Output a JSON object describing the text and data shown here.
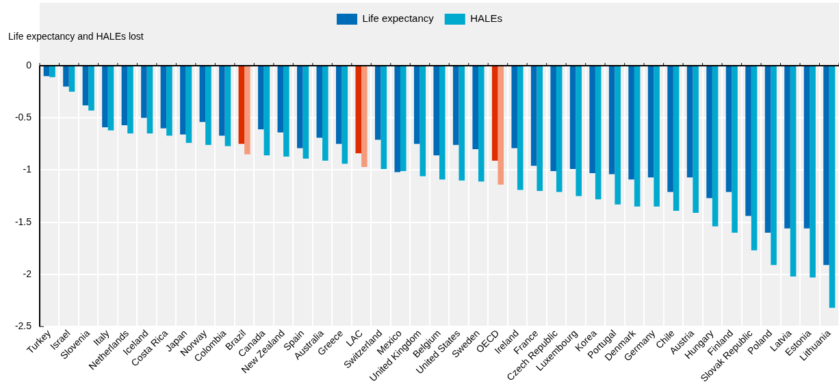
{
  "chart_data": {
    "type": "bar",
    "ylabel": "Life expectancy and HALEs lost",
    "categories": [
      "Turkey",
      "Israel",
      "Slovenia",
      "Italy",
      "Netherlands",
      "Iceland",
      "Costa Rica",
      "Japan",
      "Norway",
      "Colombia",
      "Brazil",
      "Canada",
      "New Zealand",
      "Spain",
      "Australia",
      "Greece",
      "LAC",
      "Switzerland",
      "Mexico",
      "United Kingdom",
      "Belgium",
      "United States",
      "Sweden",
      "OECD",
      "Ireland",
      "France",
      "Czech Republic",
      "Luxembourg",
      "Korea",
      "Portugal",
      "Denmark",
      "Germany",
      "Chile",
      "Austria",
      "Hungary",
      "Finland",
      "Slovak Republic",
      "Poland",
      "Latvia",
      "Estonia",
      "Lithuania"
    ],
    "series": [
      {
        "name": "Life expectancy",
        "color": "#006bb6",
        "colors": [
          "#006bb6",
          "#006bb6",
          "#006bb6",
          "#006bb6",
          "#006bb6",
          "#006bb6",
          "#006bb6",
          "#006bb6",
          "#006bb6",
          "#006bb6",
          "#de2d00",
          "#006bb6",
          "#006bb6",
          "#006bb6",
          "#006bb6",
          "#006bb6",
          "#de2d00",
          "#006bb6",
          "#006bb6",
          "#006bb6",
          "#006bb6",
          "#006bb6",
          "#006bb6",
          "#de2d00",
          "#006bb6",
          "#006bb6",
          "#006bb6",
          "#006bb6",
          "#006bb6",
          "#006bb6",
          "#006bb6",
          "#006bb6",
          "#006bb6",
          "#006bb6",
          "#006bb6",
          "#006bb6",
          "#006bb6",
          "#006bb6",
          "#006bb6",
          "#006bb6",
          "#006bb6"
        ],
        "values": [
          -0.1,
          -0.2,
          -0.38,
          -0.59,
          -0.57,
          -0.5,
          -0.6,
          -0.66,
          -0.54,
          -0.67,
          -0.75,
          -0.61,
          -0.64,
          -0.79,
          -0.69,
          -0.75,
          -0.84,
          -0.71,
          -1.02,
          -0.75,
          -0.86,
          -0.76,
          -0.8,
          -0.91,
          -0.79,
          -0.96,
          -1.01,
          -0.99,
          -1.03,
          -1.04,
          -1.09,
          -1.07,
          -1.21,
          -1.07,
          -1.27,
          -1.21,
          -1.44,
          -1.6,
          -1.56,
          -1.56,
          -1.91
        ]
      },
      {
        "name": "HALEs",
        "color": "#00a9ce",
        "colors": [
          "#00a9ce",
          "#00a9ce",
          "#00a9ce",
          "#00a9ce",
          "#00a9ce",
          "#00a9ce",
          "#00a9ce",
          "#00a9ce",
          "#00a9ce",
          "#00a9ce",
          "#f59b7c",
          "#00a9ce",
          "#00a9ce",
          "#00a9ce",
          "#00a9ce",
          "#00a9ce",
          "#f59b7c",
          "#00a9ce",
          "#00a9ce",
          "#00a9ce",
          "#00a9ce",
          "#00a9ce",
          "#00a9ce",
          "#f59b7c",
          "#00a9ce",
          "#00a9ce",
          "#00a9ce",
          "#00a9ce",
          "#00a9ce",
          "#00a9ce",
          "#00a9ce",
          "#00a9ce",
          "#00a9ce",
          "#00a9ce",
          "#00a9ce",
          "#00a9ce",
          "#00a9ce",
          "#00a9ce",
          "#00a9ce",
          "#00a9ce",
          "#00a9ce"
        ],
        "values": [
          -0.11,
          -0.25,
          -0.43,
          -0.62,
          -0.65,
          -0.65,
          -0.67,
          -0.74,
          -0.76,
          -0.77,
          -0.85,
          -0.86,
          -0.87,
          -0.89,
          -0.91,
          -0.94,
          -0.97,
          -0.99,
          -1.01,
          -1.06,
          -1.09,
          -1.1,
          -1.11,
          -1.14,
          -1.19,
          -1.2,
          -1.21,
          -1.25,
          -1.28,
          -1.33,
          -1.35,
          -1.35,
          -1.39,
          -1.41,
          -1.54,
          -1.6,
          -1.77,
          -1.91,
          -2.02,
          -2.03,
          -2.32
        ]
      }
    ],
    "ylim": [
      -2.5,
      0
    ],
    "yticks": [
      0,
      -0.5,
      -1,
      -1.5,
      -2,
      -2.5
    ],
    "grid": true,
    "legend": "top"
  }
}
